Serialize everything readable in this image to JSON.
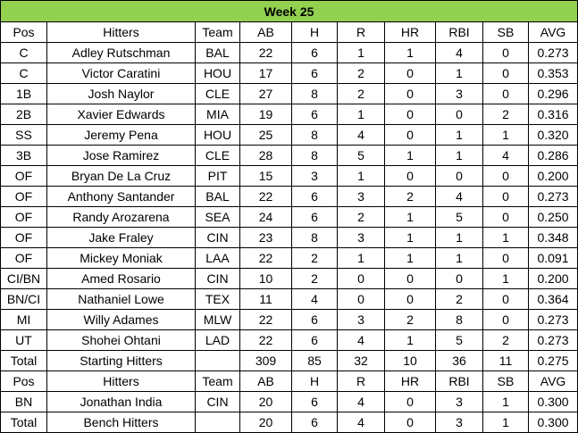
{
  "title": "Week 25",
  "sections": [
    {
      "header": [
        "Pos",
        "Hitters",
        "Team",
        "AB",
        "H",
        "R",
        "HR",
        "RBI",
        "SB",
        "AVG"
      ],
      "rows": [
        [
          "C",
          "Adley Rutschman",
          "BAL",
          22,
          6,
          1,
          1,
          4,
          0,
          "0.273"
        ],
        [
          "C",
          "Victor Caratini",
          "HOU",
          17,
          6,
          2,
          0,
          1,
          0,
          "0.353"
        ],
        [
          "1B",
          "Josh Naylor",
          "CLE",
          27,
          8,
          2,
          0,
          3,
          0,
          "0.296"
        ],
        [
          "2B",
          "Xavier Edwards",
          "MIA",
          19,
          6,
          1,
          0,
          0,
          2,
          "0.316"
        ],
        [
          "SS",
          "Jeremy Pena",
          "HOU",
          25,
          8,
          4,
          0,
          1,
          1,
          "0.320"
        ],
        [
          "3B",
          "Jose Ramirez",
          "CLE",
          28,
          8,
          5,
          1,
          1,
          4,
          "0.286"
        ],
        [
          "OF",
          "Bryan De La Cruz",
          "PIT",
          15,
          3,
          1,
          0,
          0,
          0,
          "0.200"
        ],
        [
          "OF",
          "Anthony Santander",
          "BAL",
          22,
          6,
          3,
          2,
          4,
          0,
          "0.273"
        ],
        [
          "OF",
          "Randy Arozarena",
          "SEA",
          24,
          6,
          2,
          1,
          5,
          0,
          "0.250"
        ],
        [
          "OF",
          "Jake Fraley",
          "CIN",
          23,
          8,
          3,
          1,
          1,
          1,
          "0.348"
        ],
        [
          "OF",
          "Mickey Moniak",
          "LAA",
          22,
          2,
          1,
          1,
          1,
          0,
          "0.091"
        ],
        [
          "CI/BN",
          "Amed Rosario",
          "CIN",
          10,
          2,
          0,
          0,
          0,
          1,
          "0.200"
        ],
        [
          "BN/CI",
          "Nathaniel Lowe",
          "TEX",
          11,
          4,
          0,
          0,
          2,
          0,
          "0.364"
        ],
        [
          "MI",
          "Willy Adames",
          "MLW",
          22,
          6,
          3,
          2,
          8,
          0,
          "0.273"
        ],
        [
          "UT",
          "Shohei Ohtani",
          "LAD",
          22,
          6,
          4,
          1,
          5,
          2,
          "0.273"
        ]
      ],
      "total": {
        "label": "Total",
        "name": "Starting Hitters",
        "stats": [
          309,
          85,
          32,
          10,
          36,
          11,
          "0.275"
        ]
      }
    },
    {
      "header": [
        "Pos",
        "Hitters",
        "Team",
        "AB",
        "H",
        "R",
        "HR",
        "RBI",
        "SB",
        "AVG"
      ],
      "rows": [
        [
          "BN",
          "Jonathan India",
          "CIN",
          20,
          6,
          4,
          0,
          3,
          1,
          "0.300"
        ]
      ],
      "total": {
        "label": "Total",
        "name": "Bench Hitters",
        "stats": [
          20,
          6,
          4,
          0,
          3,
          1,
          "0.300"
        ]
      }
    }
  ]
}
